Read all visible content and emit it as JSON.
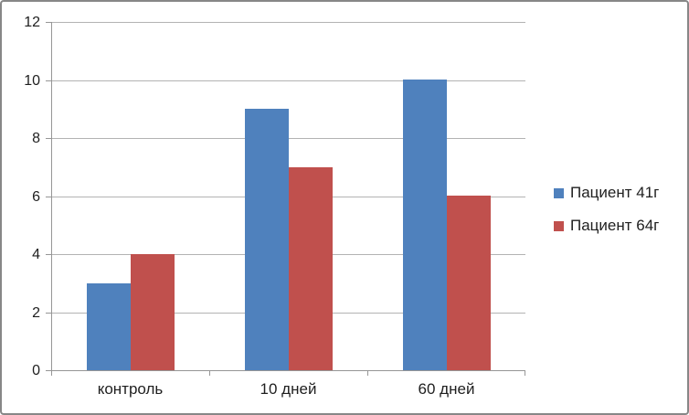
{
  "chart_data": {
    "type": "bar",
    "title": "",
    "categories": [
      "контроль",
      "10 дней",
      "60 дней"
    ],
    "series": [
      {
        "name": "Пациент 41г",
        "color": "#4F81BD",
        "values": [
          3,
          9,
          10
        ]
      },
      {
        "name": "Пациент 64г",
        "color": "#C0504D",
        "values": [
          4,
          7,
          6
        ]
      }
    ],
    "xlabel": "",
    "ylabel": "",
    "ylim": [
      0,
      12
    ],
    "yticks": [
      0,
      2,
      4,
      6,
      8,
      10,
      12
    ],
    "grid": true,
    "legend_position": "right"
  },
  "colors": {
    "gridline": "#b3b3b3",
    "axis": "#969696",
    "text": "#1f1f1f",
    "frame_border": "#878787",
    "background": "#ffffff"
  }
}
